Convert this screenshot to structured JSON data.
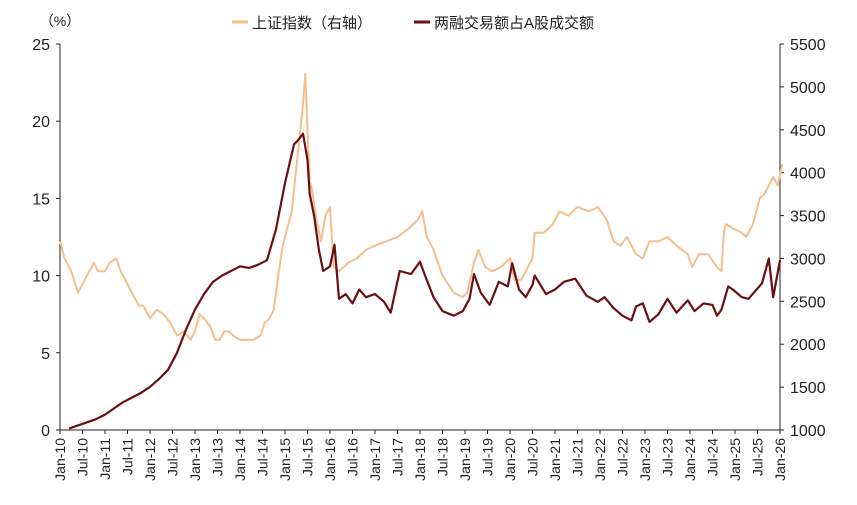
{
  "chart_data": {
    "type": "line",
    "unit_label": "（%）",
    "x_labels": [
      "Jan-10",
      "Jul-10",
      "Jan-11",
      "Jul-11",
      "Jan-12",
      "Jul-12",
      "Jan-13",
      "Jul-13",
      "Jan-14",
      "Jul-14",
      "Jan-15",
      "Jul-15",
      "Jan-16",
      "Jul-16",
      "Jan-17",
      "Jul-17",
      "Jan-18",
      "Jul-18",
      "Jan-19",
      "Jul-19",
      "Jan-20",
      "Jul-20",
      "Jan-21",
      "Jul-21",
      "Jan-22",
      "Jul-22",
      "Jan-23",
      "Jul-23",
      "Jan-24",
      "Jul-24",
      "Jan-25",
      "Jul-25",
      "Jan-26"
    ],
    "left_axis": {
      "min": 0,
      "max": 25,
      "ticks": [
        "0",
        "5",
        "10",
        "15",
        "20",
        "25"
      ]
    },
    "right_axis": {
      "min": 1000,
      "max": 5500,
      "ticks": [
        "1000",
        "1500",
        "2000",
        "2500",
        "3000",
        "3500",
        "4000",
        "4500",
        "5000",
        "5500"
      ]
    },
    "series": [
      {
        "name": "上证指数（右轴）",
        "axis": "right",
        "color": "#F5BE8C",
        "x": [
          2010.0,
          2010.1,
          2010.25,
          2010.4,
          2010.5,
          2010.6,
          2010.75,
          2010.85,
          2011.0,
          2011.1,
          2011.25,
          2011.35,
          2011.5,
          2011.6,
          2011.75,
          2011.85,
          2012.0,
          2012.15,
          2012.3,
          2012.45,
          2012.6,
          2012.75,
          2012.9,
          2013.0,
          2013.1,
          2013.2,
          2013.35,
          2013.45,
          2013.55,
          2013.65,
          2013.75,
          2013.85,
          2014.0,
          2014.15,
          2014.3,
          2014.45,
          2014.55,
          2014.65,
          2014.75,
          2014.85,
          2014.95,
          2015.0,
          2015.15,
          2015.3,
          2015.4,
          2015.45,
          2015.5,
          2015.55,
          2015.6,
          2015.7,
          2015.8,
          2015.9,
          2016.0,
          2016.08,
          2016.2,
          2016.4,
          2016.6,
          2016.8,
          2017.0,
          2017.25,
          2017.5,
          2017.75,
          2017.95,
          2018.05,
          2018.15,
          2018.3,
          2018.5,
          2018.75,
          2018.95,
          2019.05,
          2019.2,
          2019.3,
          2019.45,
          2019.6,
          2019.8,
          2020.0,
          2020.1,
          2020.25,
          2020.4,
          2020.5,
          2020.55,
          2020.75,
          2020.95,
          2021.1,
          2021.3,
          2021.5,
          2021.75,
          2021.95,
          2022.15,
          2022.3,
          2022.45,
          2022.6,
          2022.8,
          2022.95,
          2023.1,
          2023.3,
          2023.5,
          2023.7,
          2023.95,
          2024.05,
          2024.2,
          2024.4,
          2024.6,
          2024.7,
          2024.75,
          2024.8,
          2024.95,
          2025.15,
          2025.25,
          2025.4,
          2025.55,
          2025.65,
          2025.75,
          2025.85,
          2025.95,
          2026.05
        ],
        "values": [
          3200,
          3000,
          2850,
          2600,
          2700,
          2800,
          2950,
          2850,
          2850,
          2950,
          3000,
          2850,
          2700,
          2600,
          2450,
          2450,
          2300,
          2400,
          2350,
          2250,
          2100,
          2150,
          2050,
          2150,
          2350,
          2300,
          2200,
          2050,
          2050,
          2150,
          2150,
          2100,
          2050,
          2050,
          2050,
          2100,
          2250,
          2300,
          2400,
          2800,
          3150,
          3250,
          3550,
          4300,
          4800,
          5150,
          4500,
          3900,
          3800,
          3450,
          3200,
          3500,
          3600,
          2900,
          2850,
          2950,
          3000,
          3100,
          3150,
          3200,
          3250,
          3350,
          3450,
          3550,
          3250,
          3100,
          2800,
          2600,
          2550,
          2600,
          2950,
          3100,
          2900,
          2850,
          2900,
          3000,
          2750,
          2750,
          2900,
          3000,
          3300,
          3300,
          3400,
          3550,
          3500,
          3600,
          3550,
          3600,
          3450,
          3200,
          3150,
          3250,
          3050,
          3000,
          3200,
          3200,
          3250,
          3150,
          3050,
          2900,
          3050,
          3050,
          2900,
          2850,
          3300,
          3400,
          3350,
          3300,
          3250,
          3400,
          3700,
          3750,
          3850,
          3950,
          3850,
          4100
        ],
        "legend": "上证指数（右轴）"
      },
      {
        "name": "两融交易额占A股成交额",
        "axis": "left",
        "color": "#6B0F14",
        "x": [
          2010.2,
          2010.4,
          2010.6,
          2010.8,
          2011.0,
          2011.2,
          2011.4,
          2011.6,
          2011.8,
          2012.0,
          2012.2,
          2012.4,
          2012.6,
          2012.8,
          2013.0,
          2013.2,
          2013.4,
          2013.6,
          2013.8,
          2014.0,
          2014.2,
          2014.4,
          2014.6,
          2014.8,
          2015.0,
          2015.2,
          2015.3,
          2015.4,
          2015.5,
          2015.55,
          2015.65,
          2015.75,
          2015.85,
          2016.0,
          2016.1,
          2016.2,
          2016.35,
          2016.5,
          2016.65,
          2016.8,
          2017.0,
          2017.2,
          2017.35,
          2017.55,
          2017.8,
          2018.0,
          2018.1,
          2018.3,
          2018.5,
          2018.75,
          2018.95,
          2019.1,
          2019.2,
          2019.35,
          2019.55,
          2019.75,
          2019.95,
          2020.05,
          2020.2,
          2020.35,
          2020.5,
          2020.55,
          2020.8,
          2021.0,
          2021.2,
          2021.45,
          2021.7,
          2021.95,
          2022.1,
          2022.3,
          2022.5,
          2022.7,
          2022.8,
          2022.95,
          2023.1,
          2023.3,
          2023.5,
          2023.7,
          2023.95,
          2024.1,
          2024.3,
          2024.5,
          2024.6,
          2024.7,
          2024.85,
          2024.95,
          2025.15,
          2025.3,
          2025.45,
          2025.6,
          2025.75,
          2025.85,
          2026.0
        ],
        "values": [
          0.1,
          0.3,
          0.5,
          0.7,
          1.0,
          1.4,
          1.8,
          2.1,
          2.4,
          2.8,
          3.3,
          3.9,
          5.0,
          6.5,
          7.8,
          8.8,
          9.6,
          10.0,
          10.3,
          10.6,
          10.5,
          10.7,
          11.0,
          13.0,
          16.0,
          18.5,
          18.8,
          19.2,
          17.5,
          15.3,
          13.8,
          11.7,
          10.3,
          10.6,
          12.0,
          8.5,
          8.8,
          8.2,
          9.1,
          8.6,
          8.8,
          8.3,
          7.6,
          10.3,
          10.1,
          10.9,
          10.1,
          8.6,
          7.7,
          7.4,
          7.7,
          8.5,
          10.1,
          8.9,
          8.1,
          9.6,
          9.3,
          10.8,
          9.1,
          8.6,
          9.4,
          10.0,
          8.8,
          9.1,
          9.6,
          9.8,
          8.7,
          8.3,
          8.6,
          7.9,
          7.4,
          7.1,
          8.0,
          8.2,
          7.0,
          7.5,
          8.5,
          7.6,
          8.4,
          7.7,
          8.2,
          8.1,
          7.4,
          7.8,
          9.3,
          9.1,
          8.6,
          8.5,
          9.0,
          9.5,
          11.1,
          8.6,
          11.0
        ],
        "legend": "两融交易额占A股成交额"
      }
    ]
  },
  "legend": {
    "items": [
      "上证指数（右轴）",
      "两融交易额占A股成交额"
    ]
  }
}
